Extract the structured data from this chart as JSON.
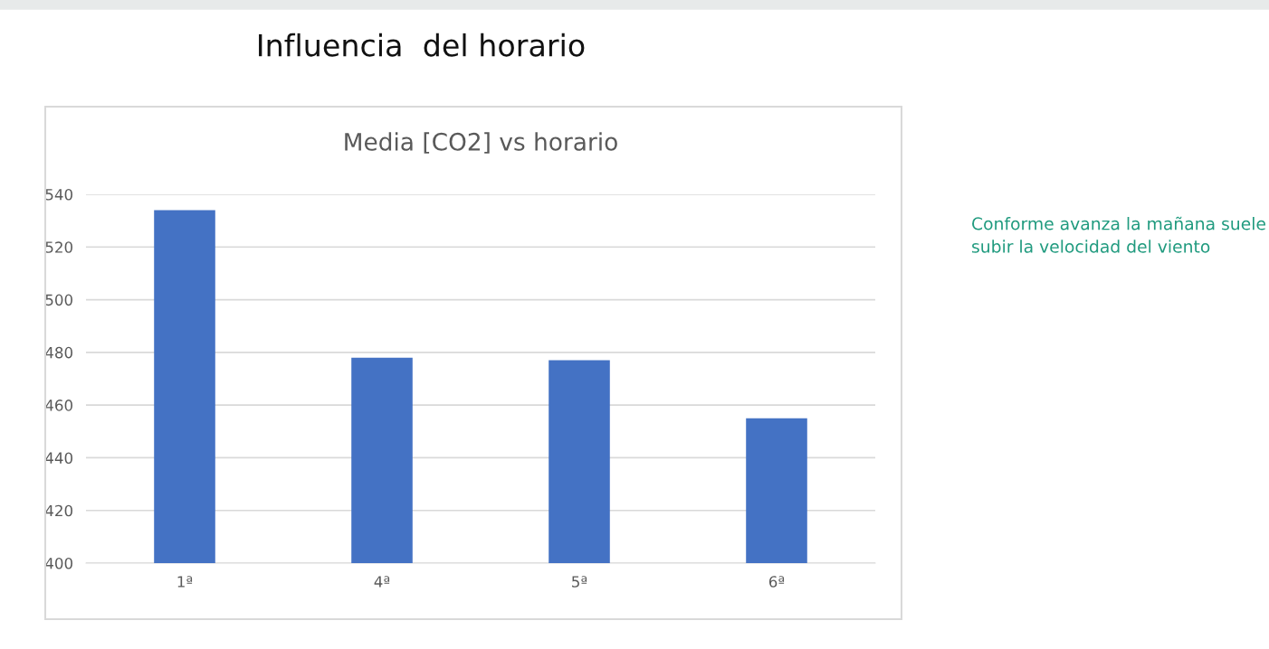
{
  "chart_data": {
    "type": "bar",
    "title": "Media [CO2] vs horario",
    "categories": [
      "1ª",
      "4ª",
      "5ª",
      "6ª"
    ],
    "series": [
      {
        "color": "#4472c4",
        "values": [
          534,
          478,
          477,
          455
        ]
      }
    ],
    "ylim": [
      400,
      540
    ],
    "yticks": [
      400,
      420,
      440,
      460,
      480,
      500,
      520,
      540
    ],
    "grid": "y",
    "legend": false,
    "annotations": [
      "Influencia  del horario",
      "Conforme avanza la mañana suele subir la velocidad del viento"
    ]
  }
}
